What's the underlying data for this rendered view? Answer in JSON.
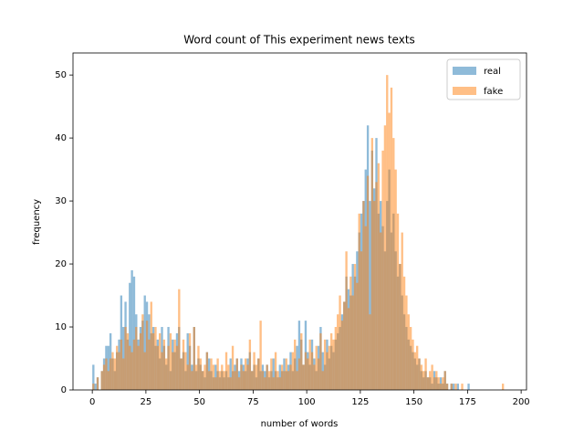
{
  "chart_data": {
    "type": "histogram",
    "title": "Word count of This experiment news texts",
    "x_label": "number of words",
    "y_label": "frequency",
    "xlim": [
      -9,
      202.5
    ],
    "ylim": [
      0,
      53.5
    ],
    "xticks": [
      0,
      25,
      50,
      75,
      100,
      125,
      150,
      175,
      200
    ],
    "yticks": [
      0,
      10,
      20,
      30,
      40,
      50
    ],
    "legend": "upper right",
    "alpha": 0.5,
    "bins": [
      0,
      1,
      2,
      3,
      4,
      5,
      6,
      7,
      8,
      9,
      10,
      11,
      12,
      13,
      14,
      15,
      16,
      17,
      18,
      19,
      20,
      21,
      22,
      23,
      24,
      25,
      26,
      27,
      28,
      29,
      30,
      31,
      32,
      33,
      34,
      35,
      36,
      37,
      38,
      39,
      40,
      41,
      42,
      43,
      44,
      45,
      46,
      47,
      48,
      49,
      50,
      51,
      52,
      53,
      54,
      55,
      56,
      57,
      58,
      59,
      60,
      61,
      62,
      63,
      64,
      65,
      66,
      67,
      68,
      69,
      70,
      71,
      72,
      73,
      74,
      75,
      76,
      77,
      78,
      79,
      80,
      81,
      82,
      83,
      84,
      85,
      86,
      87,
      88,
      89,
      90,
      91,
      92,
      93,
      94,
      95,
      96,
      97,
      98,
      99,
      100,
      101,
      102,
      103,
      104,
      105,
      106,
      107,
      108,
      109,
      110,
      111,
      112,
      113,
      114,
      115,
      116,
      117,
      118,
      119,
      120,
      121,
      122,
      123,
      124,
      125,
      126,
      127,
      128,
      129,
      130,
      131,
      132,
      133,
      134,
      135,
      136,
      137,
      138,
      139,
      140,
      141,
      142,
      143,
      144,
      145,
      146,
      147,
      148,
      149,
      150,
      151,
      152,
      153,
      154,
      155,
      156,
      157,
      158,
      159,
      160,
      161,
      162,
      163,
      164,
      165,
      166,
      167,
      168,
      169,
      170,
      171,
      172,
      173,
      174,
      175,
      176,
      177,
      178,
      179,
      180,
      181,
      182,
      183,
      184,
      185,
      186,
      187,
      188,
      189,
      190,
      191,
      192,
      193,
      194,
      195
    ],
    "series": [
      {
        "name": "real",
        "color": "#1f77b4",
        "values": [
          4,
          1,
          2,
          0,
          3,
          5,
          7,
          7,
          9,
          5,
          3,
          6,
          8,
          15,
          10,
          14,
          8,
          17,
          19,
          18,
          12,
          8,
          10,
          11,
          15,
          14,
          12,
          9,
          10,
          7,
          8,
          5,
          10,
          7,
          4,
          10,
          3,
          8,
          6,
          9,
          10,
          5,
          6,
          3,
          9,
          7,
          4,
          10,
          3,
          5,
          4,
          3,
          2,
          6,
          5,
          3,
          2,
          4,
          3,
          2,
          3,
          2,
          3,
          2,
          5,
          3,
          4,
          5,
          3,
          5,
          4,
          3,
          5,
          6,
          3,
          4,
          2,
          5,
          3,
          4,
          3,
          4,
          2,
          3,
          5,
          3,
          2,
          4,
          3,
          5,
          3,
          4,
          6,
          3,
          5,
          7,
          11,
          8,
          4,
          11,
          6,
          4,
          8,
          5,
          3,
          7,
          10,
          6,
          4,
          8,
          5,
          7,
          6,
          8,
          9,
          10,
          12,
          14,
          18,
          16,
          15,
          20,
          18,
          22,
          25,
          28,
          30,
          35,
          42,
          30,
          38,
          32,
          40,
          28,
          30,
          26,
          22,
          30,
          35,
          25,
          28,
          22,
          18,
          20,
          15,
          12,
          10,
          8,
          7,
          6,
          5,
          4,
          5,
          3,
          2,
          3,
          2,
          2,
          1,
          3,
          2,
          1,
          2,
          1,
          3,
          1,
          0,
          1,
          1,
          0,
          1,
          0,
          0,
          0,
          0,
          1,
          0,
          0,
          0,
          0,
          0,
          0,
          0,
          0,
          0,
          0,
          0,
          0,
          0,
          0,
          0,
          0,
          0,
          0,
          0
        ]
      },
      {
        "name": "fake",
        "color": "#ff7f0e",
        "values": [
          1,
          0,
          2,
          0,
          3,
          4,
          5,
          3,
          5,
          6,
          5,
          7,
          6,
          8,
          5,
          10,
          9,
          7,
          6,
          8,
          10,
          7,
          9,
          12,
          6,
          11,
          8,
          14,
          9,
          10,
          7,
          9,
          6,
          8,
          5,
          7,
          9,
          6,
          8,
          7,
          16,
          5,
          8,
          6,
          4,
          9,
          3,
          10,
          4,
          7,
          5,
          3,
          4,
          6,
          3,
          5,
          4,
          2,
          5,
          3,
          4,
          3,
          6,
          4,
          2,
          7,
          3,
          5,
          2,
          4,
          3,
          5,
          4,
          8,
          3,
          6,
          4,
          5,
          11,
          3,
          2,
          4,
          3,
          5,
          2,
          6,
          3,
          2,
          4,
          3,
          5,
          3,
          4,
          6,
          8,
          3,
          5,
          9,
          4,
          6,
          5,
          8,
          6,
          4,
          7,
          5,
          9,
          3,
          8,
          6,
          7,
          9,
          8,
          10,
          12,
          15,
          11,
          14,
          22,
          13,
          18,
          15,
          20,
          17,
          28,
          22,
          30,
          26,
          34,
          12,
          40,
          30,
          33,
          36,
          25,
          38,
          42,
          50,
          44,
          48,
          40,
          35,
          28,
          20,
          25,
          18,
          15,
          12,
          10,
          8,
          6,
          7,
          5,
          4,
          3,
          5,
          2,
          3,
          4,
          2,
          3,
          2,
          1,
          2,
          3,
          1,
          0,
          1,
          0,
          1,
          0,
          0,
          1,
          0,
          0,
          0,
          0,
          0,
          0,
          0,
          0,
          0,
          0,
          0,
          0,
          0,
          0,
          0,
          0,
          0,
          0,
          1,
          0,
          0,
          0
        ]
      }
    ]
  }
}
